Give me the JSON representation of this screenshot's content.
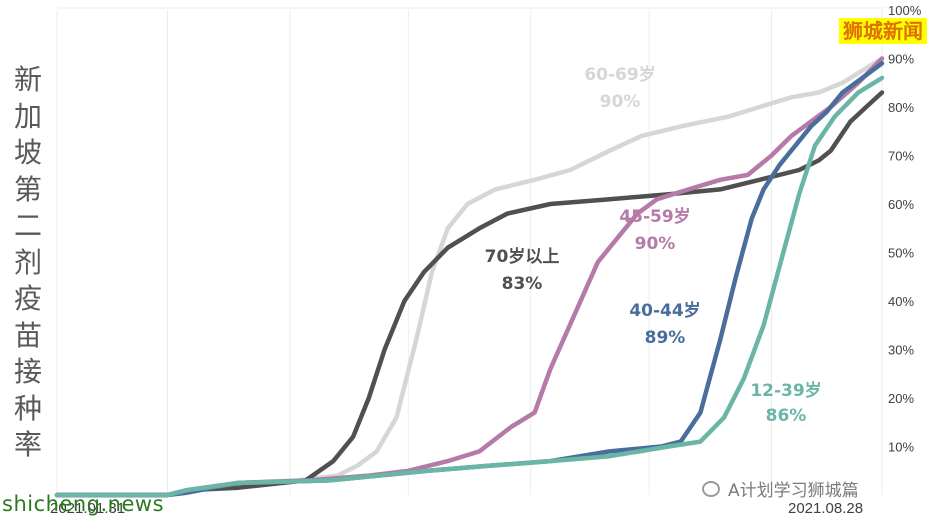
{
  "title_vertical": [
    "新",
    "加",
    "坡",
    "第",
    "二",
    "剂",
    "疫",
    "苗",
    "接",
    "种",
    "率"
  ],
  "brand_label": "狮城新闻",
  "watermark_left": "shicheng.news",
  "watermark_right": "A计划学习狮城篇",
  "x_start_label": "2021.01.31",
  "x_end_label": "2021.08.28",
  "chart_data": {
    "type": "line",
    "title": "新加坡第二剂疫苗接种率",
    "x_unit": "date",
    "x_range": [
      "2021-01-31",
      "2021-08-28"
    ],
    "y_unit": "%",
    "ylim": [
      0,
      100
    ],
    "y_ticks": [
      "10%",
      "20%",
      "30%",
      "40%",
      "50%",
      "60%",
      "70%",
      "80%",
      "90%",
      "100%"
    ],
    "y_axis_side": "right",
    "grid": "vertical",
    "series": [
      {
        "name": "60-69岁",
        "final_label": "90%",
        "color": "#d6d6d6",
        "points": [
          [
            "2021-01-31",
            0
          ],
          [
            "2021-02-28",
            0
          ],
          [
            "2021-03-05",
            0.5
          ],
          [
            "2021-03-12",
            1.5
          ],
          [
            "2021-03-18",
            2.5
          ],
          [
            "2021-04-02",
            3
          ],
          [
            "2021-04-12",
            4
          ],
          [
            "2021-04-17",
            6
          ],
          [
            "2021-04-22",
            9
          ],
          [
            "2021-04-27",
            16
          ],
          [
            "2021-05-02",
            32
          ],
          [
            "2021-05-06",
            46
          ],
          [
            "2021-05-10",
            55
          ],
          [
            "2021-05-15",
            60
          ],
          [
            "2021-05-22",
            63
          ],
          [
            "2021-06-01",
            65
          ],
          [
            "2021-06-10",
            67
          ],
          [
            "2021-06-20",
            71
          ],
          [
            "2021-06-28",
            74
          ],
          [
            "2021-07-08",
            76
          ],
          [
            "2021-07-20",
            78
          ],
          [
            "2021-07-28",
            80
          ],
          [
            "2021-08-05",
            82
          ],
          [
            "2021-08-12",
            83
          ],
          [
            "2021-08-18",
            85
          ],
          [
            "2021-08-22",
            87
          ],
          [
            "2021-08-28",
            90
          ]
        ]
      },
      {
        "name": "70岁以上",
        "final_label": "83%",
        "color": "#505050",
        "points": [
          [
            "2021-01-31",
            0
          ],
          [
            "2021-02-28",
            0
          ],
          [
            "2021-03-05",
            1
          ],
          [
            "2021-03-18",
            1.5
          ],
          [
            "2021-04-04",
            3
          ],
          [
            "2021-04-11",
            7
          ],
          [
            "2021-04-16",
            12
          ],
          [
            "2021-04-20",
            20
          ],
          [
            "2021-04-24",
            30
          ],
          [
            "2021-04-29",
            40
          ],
          [
            "2021-05-04",
            46
          ],
          [
            "2021-05-10",
            51
          ],
          [
            "2021-05-18",
            55
          ],
          [
            "2021-05-25",
            58
          ],
          [
            "2021-06-05",
            60
          ],
          [
            "2021-06-20",
            61
          ],
          [
            "2021-07-05",
            62
          ],
          [
            "2021-07-18",
            63
          ],
          [
            "2021-07-28",
            65
          ],
          [
            "2021-08-07",
            67
          ],
          [
            "2021-08-12",
            69
          ],
          [
            "2021-08-15",
            71
          ],
          [
            "2021-08-20",
            77
          ],
          [
            "2021-08-24",
            80
          ],
          [
            "2021-08-28",
            83
          ]
        ]
      },
      {
        "name": "45-59岁",
        "final_label": "90%",
        "color": "#b57aa8",
        "points": [
          [
            "2021-01-31",
            0
          ],
          [
            "2021-02-28",
            0
          ],
          [
            "2021-03-05",
            1
          ],
          [
            "2021-03-18",
            2.5
          ],
          [
            "2021-04-05",
            3
          ],
          [
            "2021-04-20",
            4
          ],
          [
            "2021-04-30",
            5
          ],
          [
            "2021-05-10",
            7
          ],
          [
            "2021-05-18",
            9
          ],
          [
            "2021-05-26",
            14
          ],
          [
            "2021-06-01",
            17
          ],
          [
            "2021-06-05",
            26
          ],
          [
            "2021-06-11",
            37
          ],
          [
            "2021-06-17",
            48
          ],
          [
            "2021-06-22",
            53
          ],
          [
            "2021-06-27",
            58
          ],
          [
            "2021-07-02",
            61
          ],
          [
            "2021-07-10",
            63
          ],
          [
            "2021-07-18",
            65
          ],
          [
            "2021-07-25",
            66
          ],
          [
            "2021-07-31",
            70
          ],
          [
            "2021-08-05",
            74
          ],
          [
            "2021-08-10",
            77
          ],
          [
            "2021-08-15",
            80
          ],
          [
            "2021-08-22",
            85
          ],
          [
            "2021-08-28",
            90
          ]
        ]
      },
      {
        "name": "40-44岁",
        "final_label": "89%",
        "color": "#4a6e9c",
        "points": [
          [
            "2021-01-31",
            0
          ],
          [
            "2021-02-28",
            0
          ],
          [
            "2021-03-05",
            0.5
          ],
          [
            "2021-03-18",
            2.5
          ],
          [
            "2021-04-10",
            3
          ],
          [
            "2021-05-05",
            5
          ],
          [
            "2021-05-20",
            6
          ],
          [
            "2021-06-05",
            7
          ],
          [
            "2021-06-20",
            9
          ],
          [
            "2021-07-03",
            10
          ],
          [
            "2021-07-08",
            11
          ],
          [
            "2021-07-13",
            17
          ],
          [
            "2021-07-18",
            32
          ],
          [
            "2021-07-22",
            45
          ],
          [
            "2021-07-26",
            57
          ],
          [
            "2021-07-29",
            63
          ],
          [
            "2021-08-02",
            68
          ],
          [
            "2021-08-06",
            72
          ],
          [
            "2021-08-10",
            76
          ],
          [
            "2021-08-14",
            79
          ],
          [
            "2021-08-18",
            83
          ],
          [
            "2021-08-23",
            86
          ],
          [
            "2021-08-28",
            89
          ]
        ]
      },
      {
        "name": "12-39岁",
        "final_label": "86%",
        "color": "#6bb5a6",
        "points": [
          [
            "2021-01-31",
            0
          ],
          [
            "2021-02-28",
            0
          ],
          [
            "2021-03-05",
            1
          ],
          [
            "2021-03-18",
            2.5
          ],
          [
            "2021-04-10",
            3
          ],
          [
            "2021-05-05",
            5
          ],
          [
            "2021-05-20",
            6
          ],
          [
            "2021-06-05",
            7
          ],
          [
            "2021-06-20",
            8
          ],
          [
            "2021-07-05",
            10
          ],
          [
            "2021-07-13",
            11
          ],
          [
            "2021-07-19",
            16
          ],
          [
            "2021-07-24",
            24
          ],
          [
            "2021-07-29",
            35
          ],
          [
            "2021-08-03",
            50
          ],
          [
            "2021-08-07",
            62
          ],
          [
            "2021-08-11",
            72
          ],
          [
            "2021-08-16",
            78
          ],
          [
            "2021-08-22",
            83
          ],
          [
            "2021-08-28",
            86
          ]
        ]
      }
    ]
  }
}
